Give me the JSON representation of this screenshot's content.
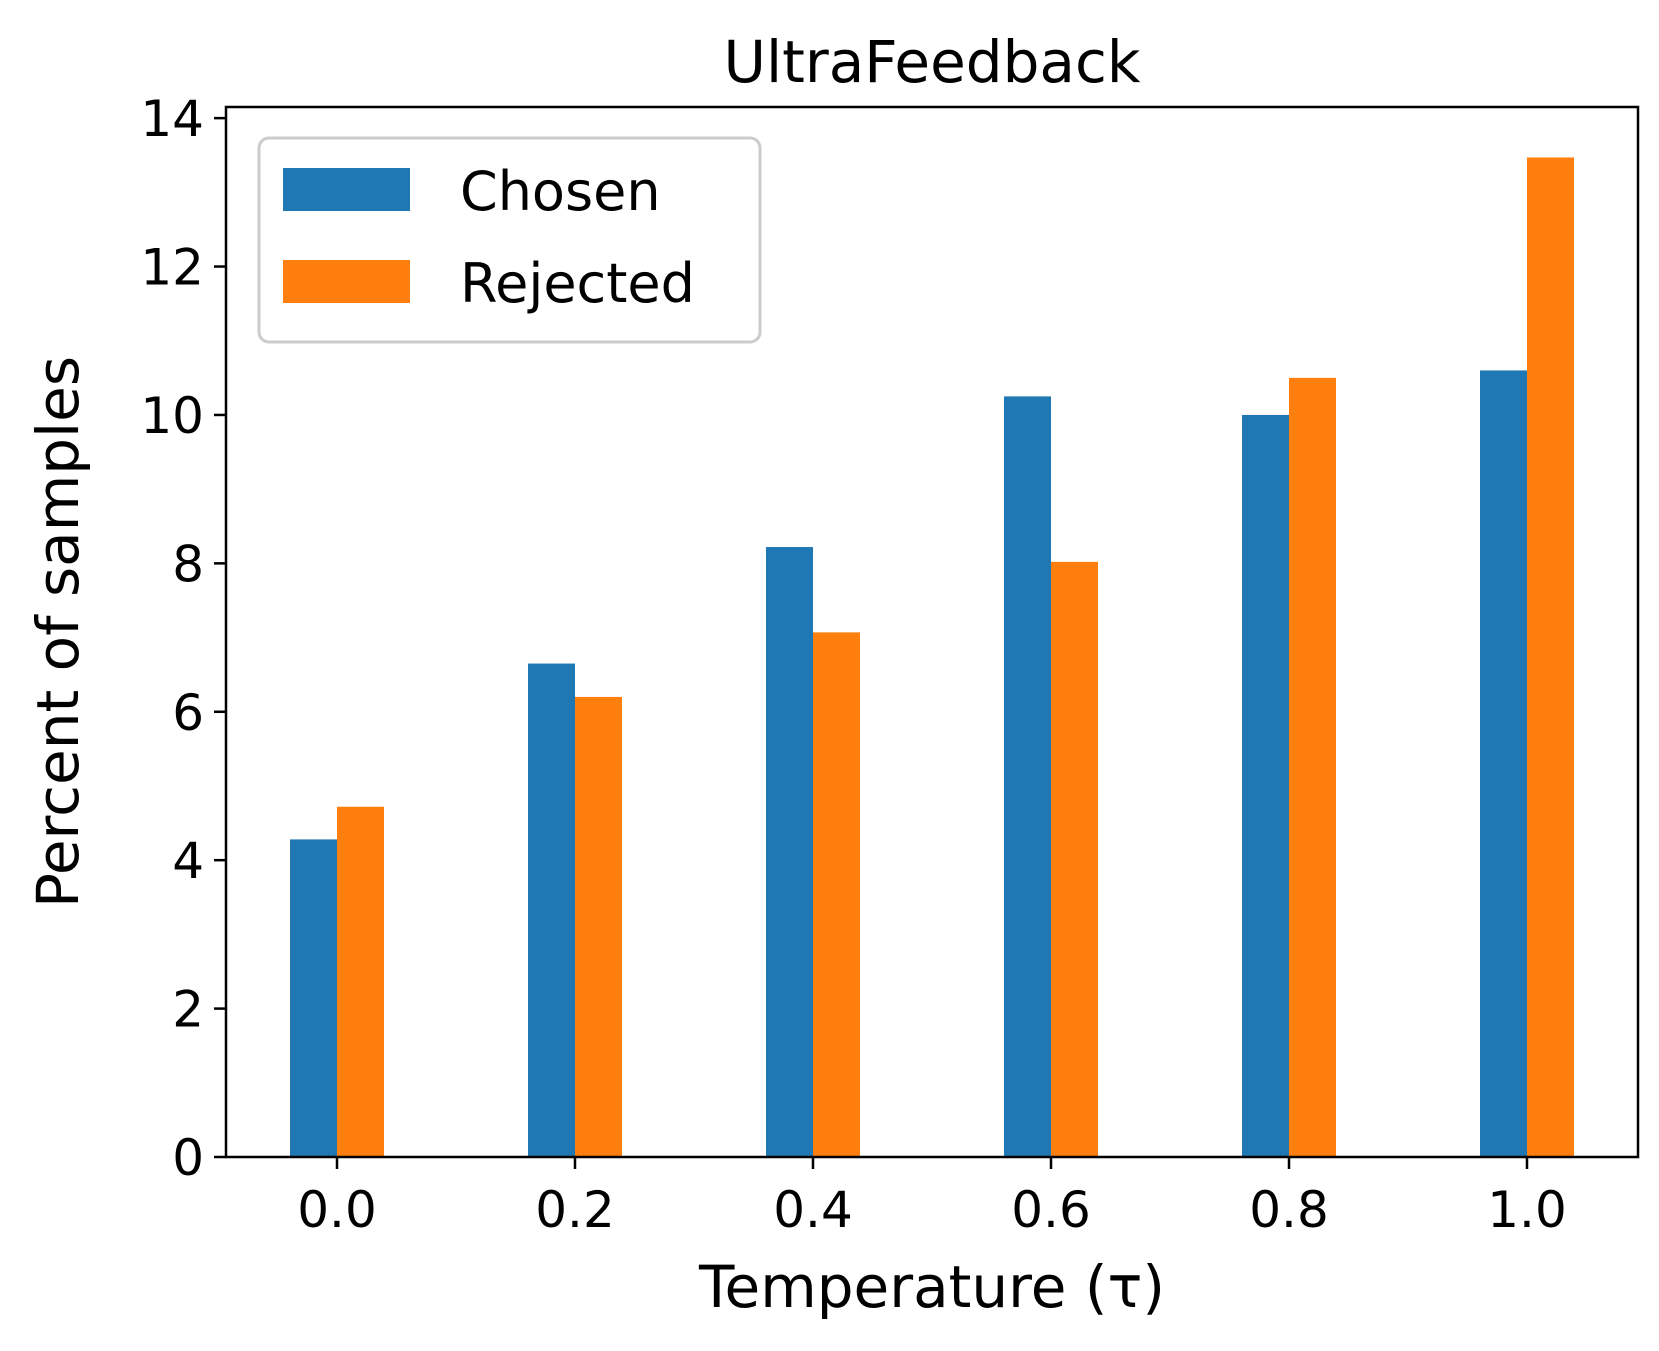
{
  "chart_data": {
    "type": "bar",
    "title": "UltraFeedback",
    "xlabel": "Temperature (τ)",
    "ylabel": "Percent of samples",
    "categories": [
      "0.0",
      "0.2",
      "0.4",
      "0.6",
      "0.8",
      "1.0"
    ],
    "series": [
      {
        "name": "Chosen",
        "color": "#1f77b4",
        "values": [
          4.28,
          6.65,
          8.22,
          10.25,
          10.0,
          10.6
        ]
      },
      {
        "name": "Rejected",
        "color": "#ff7f0e",
        "values": [
          4.72,
          6.2,
          7.07,
          8.02,
          10.5,
          13.47
        ]
      }
    ],
    "yticks": [
      "0",
      "2",
      "4",
      "6",
      "8",
      "10",
      "12",
      "14"
    ],
    "ylim": [
      0,
      14.15
    ],
    "grid": false,
    "legend_position": "top-left"
  }
}
